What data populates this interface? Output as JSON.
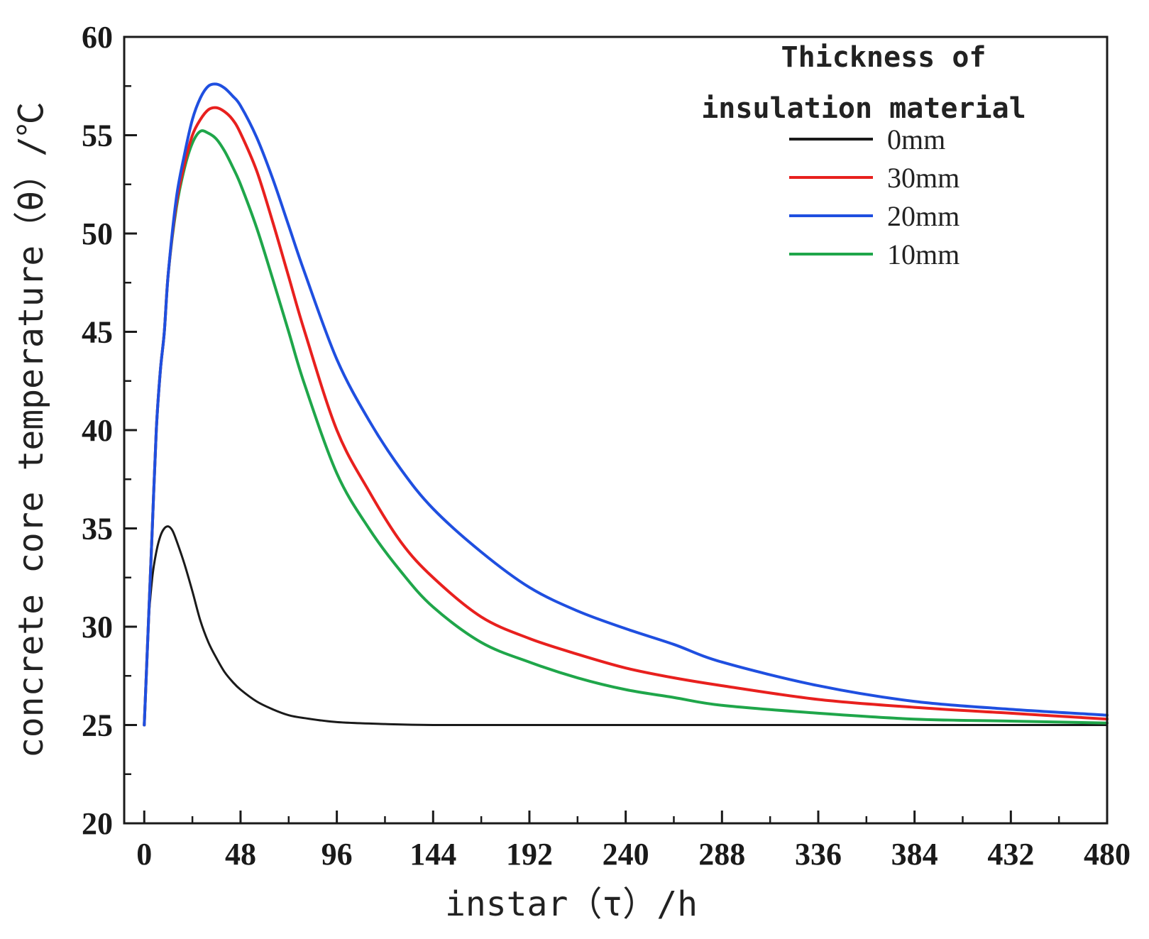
{
  "chart_data": {
    "type": "line",
    "title": "",
    "xlabel": "instar（τ）/h",
    "ylabel": "concrete core temperature（θ）/℃",
    "xlim": [
      -10,
      480
    ],
    "ylim": [
      20,
      60
    ],
    "xticks": [
      0,
      48,
      96,
      144,
      192,
      240,
      288,
      336,
      384,
      432,
      480
    ],
    "yticks": [
      20,
      25,
      30,
      35,
      40,
      45,
      50,
      55,
      60
    ],
    "grid": false,
    "legend": {
      "title_line1": "Thickness of",
      "title_line2": "insulation material",
      "position": "top-right"
    },
    "series": [
      {
        "name": "0mm",
        "color": "#1a1a1a",
        "x": [
          0,
          2,
          4,
          6,
          8,
          10,
          12,
          14,
          16,
          20,
          24,
          28,
          32,
          36,
          40,
          44,
          48,
          56,
          64,
          72,
          80,
          96,
          120,
          144,
          192,
          240,
          288,
          336,
          384,
          432,
          480
        ],
        "y": [
          25,
          30,
          32.5,
          33.8,
          34.6,
          35,
          35.1,
          34.9,
          34.4,
          33.2,
          31.8,
          30.3,
          29.2,
          28.4,
          27.7,
          27.2,
          26.8,
          26.2,
          25.8,
          25.5,
          25.35,
          25.15,
          25.05,
          25.0,
          25.0,
          25.0,
          25.0,
          25.0,
          25.0,
          25.0,
          25.0
        ]
      },
      {
        "name": "30mm",
        "color": "#e8201e",
        "x": [
          0,
          2,
          4,
          6,
          8,
          10,
          12,
          16,
          20,
          24,
          28,
          32,
          36,
          40,
          44,
          48,
          56,
          64,
          72,
          80,
          96,
          112,
          128,
          144,
          168,
          192,
          216,
          240,
          264,
          288,
          336,
          384,
          432,
          480
        ],
        "y": [
          25,
          30,
          35,
          40,
          43,
          45,
          48,
          51.5,
          53.5,
          55.0,
          55.8,
          56.3,
          56.4,
          56.2,
          55.8,
          55.1,
          53.2,
          50.6,
          47.8,
          45.0,
          40.0,
          36.9,
          34.3,
          32.5,
          30.5,
          29.4,
          28.6,
          27.9,
          27.4,
          27.0,
          26.3,
          25.9,
          25.6,
          25.3
        ]
      },
      {
        "name": "20mm",
        "color": "#1f4fe0",
        "x": [
          0,
          2,
          4,
          6,
          8,
          10,
          12,
          16,
          20,
          24,
          28,
          32,
          36,
          40,
          44,
          48,
          56,
          64,
          72,
          80,
          96,
          112,
          128,
          144,
          168,
          192,
          216,
          240,
          264,
          288,
          336,
          384,
          432,
          480
        ],
        "y": [
          25,
          30,
          35,
          40,
          43,
          45,
          48,
          51.8,
          54.0,
          55.8,
          56.9,
          57.5,
          57.6,
          57.4,
          57.0,
          56.5,
          54.9,
          52.8,
          50.4,
          48.0,
          43.6,
          40.5,
          38.0,
          36.0,
          33.8,
          32.0,
          30.8,
          29.9,
          29.1,
          28.2,
          27.0,
          26.2,
          25.8,
          25.5
        ]
      },
      {
        "name": "10mm",
        "color": "#1fa64a",
        "x": [
          0,
          2,
          4,
          6,
          8,
          10,
          12,
          16,
          20,
          24,
          28,
          32,
          36,
          40,
          44,
          48,
          56,
          64,
          72,
          80,
          96,
          112,
          128,
          144,
          168,
          192,
          216,
          240,
          264,
          288,
          336,
          384,
          432,
          480
        ],
        "y": [
          25,
          30,
          35,
          40,
          43,
          45,
          48,
          51.3,
          53.3,
          54.6,
          55.2,
          55.1,
          54.8,
          54.2,
          53.4,
          52.5,
          50.3,
          47.7,
          45.0,
          42.3,
          37.8,
          35.0,
          32.8,
          31.0,
          29.2,
          28.2,
          27.4,
          26.8,
          26.4,
          26.0,
          25.6,
          25.3,
          25.2,
          25.1
        ]
      }
    ]
  }
}
